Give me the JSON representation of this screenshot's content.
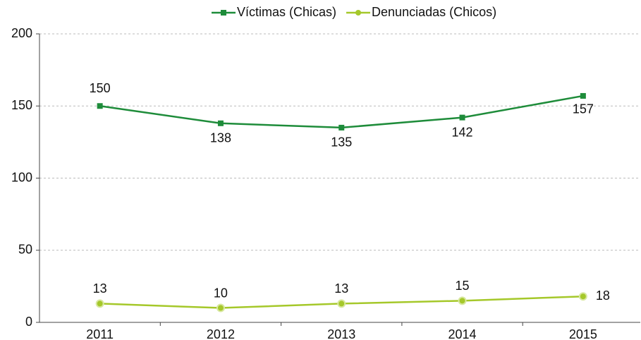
{
  "chart_data": {
    "type": "line",
    "categories": [
      "2011",
      "2012",
      "2013",
      "2014",
      "2015"
    ],
    "series": [
      {
        "name": "Víctimas (Chicas)",
        "color": "#1e8c3a",
        "values": [
          150,
          138,
          135,
          142,
          157
        ]
      },
      {
        "name": "Denunciadas (Chicos)",
        "color": "#a5c82a",
        "values": [
          13,
          10,
          13,
          15,
          18
        ]
      }
    ],
    "ylim": [
      0,
      200
    ],
    "yticks": [
      0,
      50,
      100,
      150,
      200
    ],
    "grid": true,
    "legend": "top"
  }
}
